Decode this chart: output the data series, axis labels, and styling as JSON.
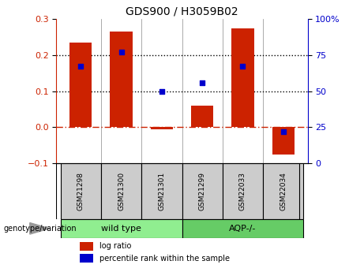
{
  "title": "GDS900 / H3059B02",
  "samples": [
    "GSM21298",
    "GSM21300",
    "GSM21301",
    "GSM21299",
    "GSM22033",
    "GSM22034"
  ],
  "log_ratio": [
    0.235,
    0.265,
    -0.005,
    0.06,
    0.275,
    -0.075
  ],
  "percentile_rank": [
    67,
    77,
    50,
    56,
    67,
    22
  ],
  "bar_color": "#cc2200",
  "dot_color": "#0000cc",
  "ylim_left": [
    -0.1,
    0.3
  ],
  "ylim_right": [
    0,
    100
  ],
  "yticks_left": [
    -0.1,
    0.0,
    0.1,
    0.2,
    0.3
  ],
  "yticks_right": [
    0,
    25,
    50,
    75,
    100
  ],
  "hline_values": [
    0.1,
    0.2
  ],
  "zero_line": 0.0,
  "bar_width": 0.55,
  "background_color": "#ffffff",
  "plot_bg_color": "#ffffff",
  "label_bg_color": "#cccccc",
  "group1_label": "wild type",
  "group2_label": "AQP-/-",
  "group1_color": "#90ee90",
  "group2_color": "#66cc66",
  "legend_items": [
    "log ratio",
    "percentile rank within the sample"
  ],
  "genotype_label": "genotype/variation",
  "title_fontsize": 10,
  "tick_fontsize": 8,
  "sample_fontsize": 6.5,
  "group_fontsize": 8,
  "legend_fontsize": 7
}
